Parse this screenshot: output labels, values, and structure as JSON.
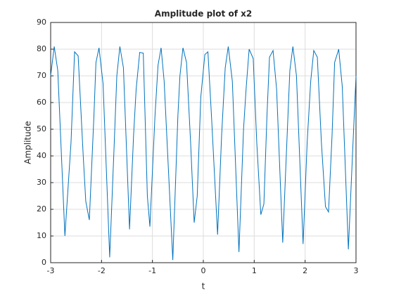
{
  "chart_data": {
    "type": "line",
    "title": "Amplitude plot of x2",
    "xlabel": "t",
    "ylabel": "Amplitude",
    "x": [
      -3,
      -2.93,
      -2.86,
      -2.72,
      -2.6,
      -2.53,
      -2.46,
      -2.36,
      -2.31,
      -2.24,
      -2.15,
      -2.11,
      -2.05,
      -1.97,
      -1.84,
      -1.75,
      -1.7,
      -1.64,
      -1.57,
      -1.45,
      -1.37,
      -1.32,
      -1.25,
      -1.18,
      -1.1,
      -1.05,
      -0.95,
      -0.89,
      -0.83,
      -0.77,
      -0.6,
      -0.5,
      -0.46,
      -0.4,
      -0.33,
      -0.25,
      -0.18,
      -0.12,
      -0.05,
      0.03,
      0.09,
      0.16,
      0.28,
      0.36,
      0.43,
      0.49,
      0.57,
      0.7,
      0.79,
      0.84,
      0.9,
      0.98,
      1.05,
      1.13,
      1.19,
      1.25,
      1.3,
      1.37,
      1.44,
      1.56,
      1.63,
      1.7,
      1.76,
      1.83,
      1.96,
      2.04,
      2.11,
      2.17,
      2.24,
      2.32,
      2.4,
      2.46,
      2.53,
      2.58,
      2.66,
      2.73,
      2.85,
      2.93,
      3
    ],
    "series": [
      {
        "name": "x2",
        "color": "#0072bd",
        "values": [
          70,
          81,
          72,
          10,
          45,
          79,
          77.5,
          40,
          23,
          16,
          55,
          75,
          80.5,
          67,
          2,
          45,
          70,
          81,
          73,
          12.5,
          48,
          65,
          78.8,
          78.5,
          25,
          13.5,
          55,
          74,
          80.5,
          68,
          1,
          55,
          70,
          80.5,
          75,
          45,
          15,
          25,
          62,
          78,
          79,
          55,
          10.5,
          48,
          73,
          81,
          68,
          4,
          50,
          65,
          80,
          76.5,
          45,
          18,
          22,
          55,
          77,
          79.5,
          65,
          7.5,
          40,
          72,
          81,
          70,
          7,
          45,
          68,
          79.5,
          77,
          45,
          21,
          19,
          48,
          75,
          80,
          66,
          5,
          40,
          70
        ]
      }
    ],
    "xlim": [
      -3,
      3
    ],
    "xticks": [
      -3,
      -2,
      -1,
      0,
      1,
      2,
      3
    ],
    "ylim": [
      0,
      90
    ],
    "yticks": [
      0,
      10,
      20,
      30,
      40,
      50,
      60,
      70,
      80,
      90
    ],
    "grid": true
  }
}
